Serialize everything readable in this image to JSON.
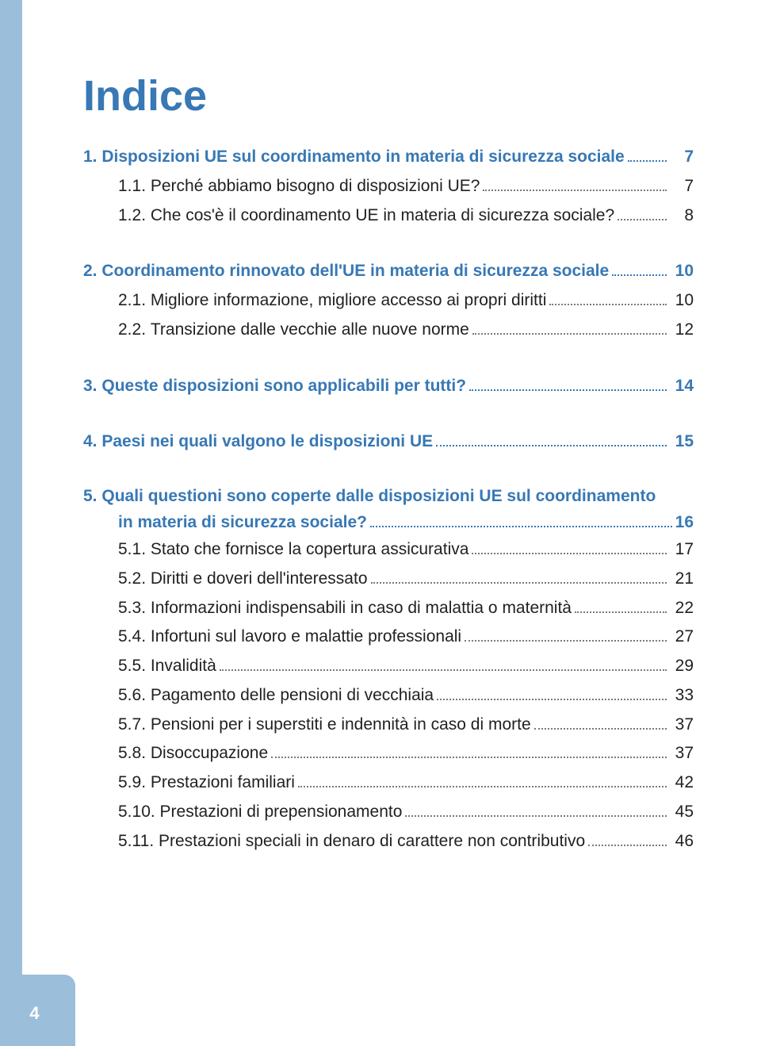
{
  "page_number": "4",
  "title": "Indice",
  "colors": {
    "primary": "#3878b4",
    "sidebar": "#9bbedb",
    "text": "#221f1f",
    "dots": "#7a7a7a"
  },
  "sections": [
    {
      "heading": {
        "num": "1. ",
        "label": "Disposizioni UE sul coordinamento in materia di sicurezza sociale",
        "page": "7"
      },
      "items": [
        {
          "num": "1.1. ",
          "label": "Perché abbiamo bisogno di disposizioni UE?",
          "page": "7"
        },
        {
          "num": "1.2. ",
          "label": "Che cos'è il coordinamento UE in materia di sicurezza sociale?",
          "page": "8"
        }
      ]
    },
    {
      "heading": {
        "num": "2. ",
        "label": "Coordinamento rinnovato dell'UE in materia di sicurezza sociale",
        "page": "10"
      },
      "items": [
        {
          "num": "2.1. ",
          "label": "Migliore informazione, migliore accesso ai propri diritti",
          "page": "10"
        },
        {
          "num": "2.2. ",
          "label": "Transizione dalle vecchie alle nuove norme",
          "page": "12"
        }
      ]
    },
    {
      "heading": {
        "num": "3. ",
        "label": "Queste disposizioni sono applicabili per tutti?",
        "page": "14"
      },
      "items": []
    },
    {
      "heading": {
        "num": "4. ",
        "label": "Paesi nei quali valgono le disposizioni UE",
        "page": "15"
      },
      "items": []
    },
    {
      "heading_multiline": {
        "num": "5. ",
        "line1": "Quali questioni sono coperte dalle disposizioni UE sul coordinamento",
        "line2": "in materia di sicurezza sociale?",
        "page": "16"
      },
      "items": [
        {
          "num": "5.1. ",
          "label": "Stato che fornisce la copertura assicurativa",
          "page": "17"
        },
        {
          "num": "5.2. ",
          "label": "Diritti e doveri dell'interessato",
          "page": "21"
        },
        {
          "num": "5.3. ",
          "label": "Informazioni indispensabili in caso di malattia o maternità",
          "page": "22"
        },
        {
          "num": "5.4. ",
          "label": "Infortuni sul lavoro e malattie professionali",
          "page": "27"
        },
        {
          "num": "5.5. ",
          "label": "Invalidità",
          "page": "29"
        },
        {
          "num": "5.6. ",
          "label": "Pagamento delle pensioni di vecchiaia",
          "page": "33"
        },
        {
          "num": "5.7. ",
          "label": "Pensioni per i superstiti e indennità in caso di morte",
          "page": "37"
        },
        {
          "num": "5.8. ",
          "label": "Disoccupazione",
          "page": "37"
        },
        {
          "num": "5.9. ",
          "label": "Prestazioni familiari",
          "page": "42"
        },
        {
          "num": "5.10. ",
          "label": "Prestazioni di prepensionamento",
          "page": "45"
        },
        {
          "num": "5.11. ",
          "label": "Prestazioni speciali in denaro di carattere non contributivo",
          "page": "46"
        }
      ]
    }
  ]
}
